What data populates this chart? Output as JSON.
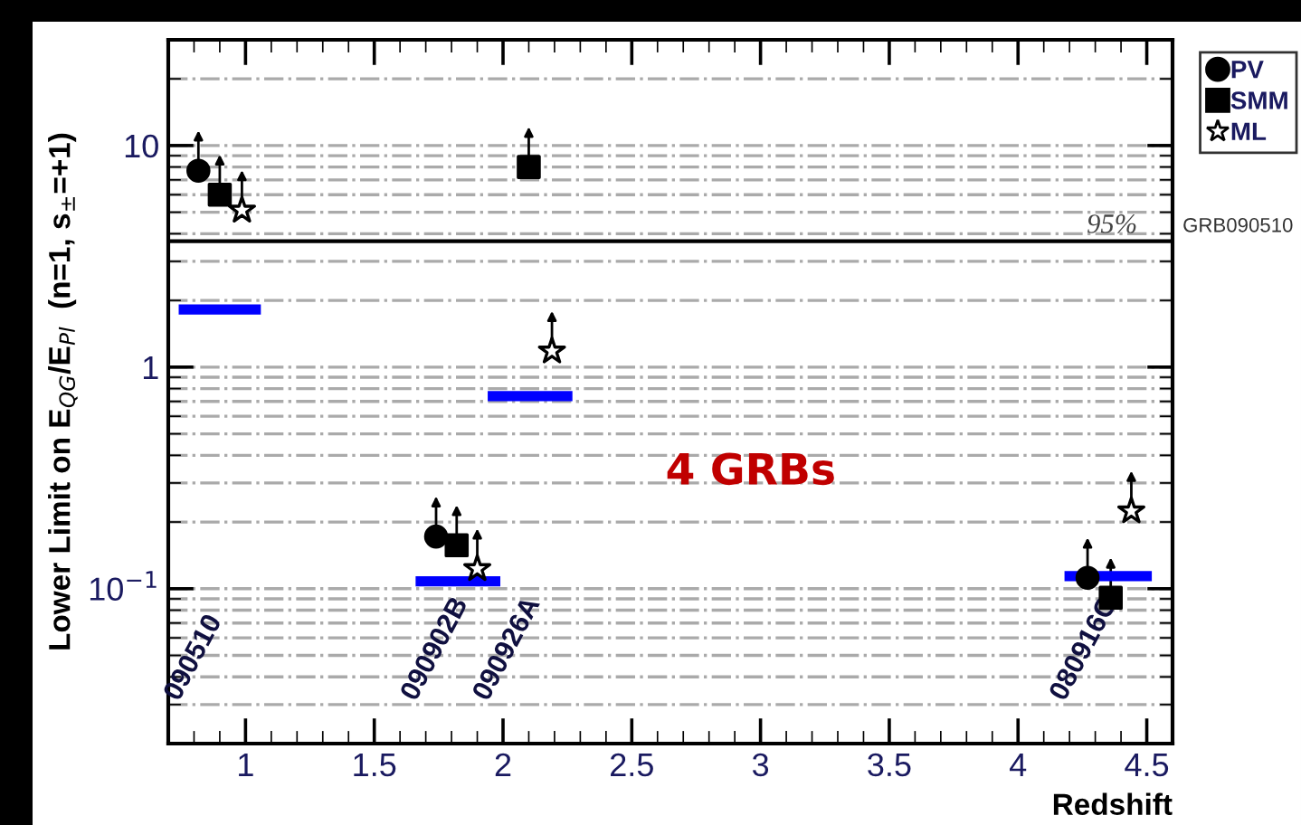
{
  "chart_data": {
    "type": "scatter",
    "xlabel": "Redshift",
    "ylabel": "Lower Limit on E$_{QG}$/E$_{Pl}$  (n=1, s$_{±}$=+1)",
    "log": "y",
    "xlim": [
      0.7,
      4.6
    ],
    "xticks": [
      1,
      1.5,
      2,
      2.5,
      3,
      3.5,
      4,
      4.5
    ],
    "ylim": [
      0.02,
      30
    ],
    "yticks": [
      {
        "value": 0.1,
        "label": "10$^{−1}$"
      },
      1,
      10
    ],
    "grid": "y",
    "legend": "top right",
    "series": [
      {
        "name": "PV",
        "marker": "circle",
        "color": "#000000",
        "x": [
          0.817,
          1.74,
          4.27
        ],
        "values": [
          7.7,
          0.172,
          0.112
        ]
      },
      {
        "name": "SMM",
        "marker": "square",
        "color": "#000000",
        "x": [
          0.9,
          2.1,
          1.82,
          4.36
        ],
        "values": [
          6.0,
          8.0,
          0.157,
          0.091
        ]
      },
      {
        "name": "ML",
        "marker": "star",
        "color": "#000000",
        "x": [
          0.986,
          2.19,
          1.9,
          4.44
        ],
        "values": [
          5.1,
          1.18,
          0.123,
          0.224
        ]
      },
      {
        "type": "line",
        "color": "#0000ff",
        "x": [
          0.76,
          1.04
        ],
        "values": [
          1.82,
          1.82
        ]
      },
      {
        "type": "line",
        "color": "#0000ff",
        "x": [
          1.68,
          1.97
        ],
        "values": [
          0.108,
          0.108
        ]
      },
      {
        "type": "line",
        "color": "#0000ff",
        "x": [
          1.96,
          2.25
        ],
        "values": [
          0.74,
          0.74
        ]
      },
      {
        "type": "line",
        "color": "#0000ff",
        "x": [
          4.2,
          4.5
        ],
        "values": [
          0.114,
          0.114
        ]
      }
    ],
    "ref_lines": [
      {
        "axis": "y",
        "value": 3.7,
        "label": "GRB090510",
        "color": "#000000"
      }
    ],
    "annotations": [
      "95%",
      "4 GRBs",
      "090510",
      "090902B",
      "090926A",
      "080916C"
    ]
  }
}
